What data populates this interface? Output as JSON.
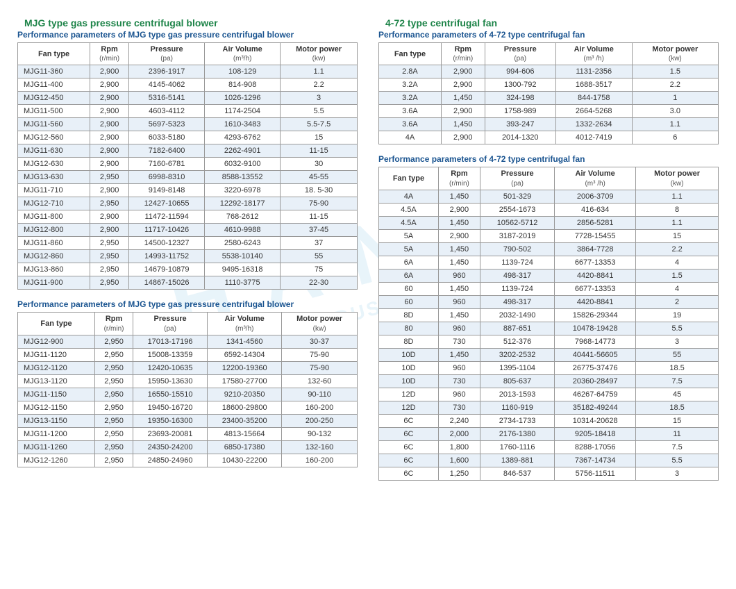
{
  "left": {
    "title": "MJG type gas pressure centrifugal blower",
    "sub": "Performance parameters of MJG type gas pressure centrifugal blower",
    "headers": [
      [
        "Fan type",
        ""
      ],
      [
        "Rpm",
        "(r/min)"
      ],
      [
        "Pressure",
        "(pa)"
      ],
      [
        "Air Volume",
        "(m³/h)"
      ],
      [
        "Motor power",
        "(kw)"
      ]
    ],
    "rows1": [
      [
        "MJG11-360",
        "2,900",
        "2396-1917",
        "108-129",
        "1.1"
      ],
      [
        "MJG11-400",
        "2,900",
        "4145-4062",
        "814-908",
        "2.2"
      ],
      [
        "MJG12-450",
        "2,900",
        "5316-5141",
        "1026-1296",
        "3"
      ],
      [
        "MJG11-500",
        "2,900",
        "4603-4112",
        "1174-2504",
        "5.5"
      ],
      [
        "MJG11-560",
        "2,900",
        "5697-5323",
        "1610-3483",
        "5.5-7.5"
      ],
      [
        "MJG12-560",
        "2,900",
        "6033-5180",
        "4293-6762",
        "15"
      ],
      [
        "MJG11-630",
        "2,900",
        "7182-6400",
        "2262-4901",
        "11-15"
      ],
      [
        "MJG12-630",
        "2,900",
        "7160-6781",
        "6032-9100",
        "30"
      ],
      [
        "MJG13-630",
        "2,950",
        "6998-8310",
        "8588-13552",
        "45-55"
      ],
      [
        "MJG11-710",
        "2,900",
        "9149-8148",
        "3220-6978",
        "18. 5-30"
      ],
      [
        "MJG12-710",
        "2,950",
        "12427-10655",
        "12292-18177",
        "75-90"
      ],
      [
        "MJG11-800",
        "2,900",
        "11472-11594",
        "768-2612",
        "11-15"
      ],
      [
        "MJG12-800",
        "2,900",
        "11717-10426",
        "4610-9988",
        "37-45"
      ],
      [
        "MJG11-860",
        "2,950",
        "14500-12327",
        "2580-6243",
        "37"
      ],
      [
        "MJG12-860",
        "2,950",
        "14993-11752",
        "5538-10140",
        "55"
      ],
      [
        "MJG13-860",
        "2,950",
        "14679-10879",
        "9495-16318",
        "75"
      ],
      [
        "MJG11-900",
        "2,950",
        "14867-15026",
        "1110-3775",
        "22-30"
      ]
    ],
    "sub2": "Performance parameters of MJG type gas pressure centrifugal blower",
    "rows2": [
      [
        "MJG12-900",
        "2,950",
        "17013-17196",
        "1341-4560",
        "30-37"
      ],
      [
        "MJG11-1120",
        "2,950",
        "15008-13359",
        "6592-14304",
        "75-90"
      ],
      [
        "MJG12-1120",
        "2,950",
        "12420-10635",
        "12200-19360",
        "75-90"
      ],
      [
        "MJG13-1120",
        "2,950",
        "15950-13630",
        "17580-27700",
        "132-60"
      ],
      [
        "MJG11-1150",
        "2,950",
        "16550-15510",
        "9210-20350",
        "90-110"
      ],
      [
        "MJG12-1150",
        "2,950",
        "19450-16720",
        "18600-29800",
        "160-200"
      ],
      [
        "MJG13-1150",
        "2,950",
        "19350-16300",
        "23400-35200",
        "200-250"
      ],
      [
        "MJG11-1200",
        "2,950",
        "23693-20081",
        "4813-15664",
        "90-132"
      ],
      [
        "MJG11-1260",
        "2,950",
        "24350-24200",
        "6850-17380",
        "132-160"
      ],
      [
        "MJG12-1260",
        "2,950",
        "24850-24960",
        "10430-22200",
        "160-200"
      ]
    ]
  },
  "right": {
    "title": "4-72 type centrifugal fan",
    "sub": "Performance parameters of 4-72 type centrifugal fan",
    "headers": [
      [
        "Fan type",
        ""
      ],
      [
        "Rpm",
        "(r/min)"
      ],
      [
        "Pressure",
        "(pa)"
      ],
      [
        "Air Volume",
        "(m³ /h)"
      ],
      [
        "Motor power",
        "(kw)"
      ]
    ],
    "rows1": [
      [
        "2.8A",
        "2,900",
        "994-606",
        "1131-2356",
        "1.5"
      ],
      [
        "3.2A",
        "2,900",
        "1300-792",
        "1688-3517",
        "2.2"
      ],
      [
        "3.2A",
        "1,450",
        "324-198",
        "844-1758",
        "1"
      ],
      [
        "3.6A",
        "2,900",
        "1758-989",
        "2664-5268",
        "3.0"
      ],
      [
        "3.6A",
        "1,450",
        "393-247",
        "1332-2634",
        "1.1"
      ],
      [
        "4A",
        "2,900",
        "2014-1320",
        "4012-7419",
        "6"
      ]
    ],
    "sub2": "Performance parameters of 4-72 type centrifugal fan",
    "rows2": [
      [
        "4A",
        "1,450",
        "501-329",
        "2006-3709",
        "1.1"
      ],
      [
        "4.5A",
        "2,900",
        "2554-1673",
        "416-634",
        "8"
      ],
      [
        "4.5A",
        "1,450",
        "10562-5712",
        "2856-5281",
        "1.1"
      ],
      [
        "5A",
        "2,900",
        "3187-2019",
        "7728-15455",
        "15"
      ],
      [
        "5A",
        "1,450",
        "790-502",
        "3864-7728",
        "2.2"
      ],
      [
        "6A",
        "1,450",
        "1139-724",
        "6677-13353",
        "4"
      ],
      [
        "6A",
        "960",
        "498-317",
        "4420-8841",
        "1.5"
      ],
      [
        "60",
        "1,450",
        "1139-724",
        "6677-13353",
        "4"
      ],
      [
        "60",
        "960",
        "498-317",
        "4420-8841",
        "2"
      ],
      [
        "8D",
        "1,450",
        "2032-1490",
        "15826-29344",
        "19"
      ],
      [
        "80",
        "960",
        "887-651",
        "10478-19428",
        "5.5"
      ],
      [
        "8D",
        "730",
        "512-376",
        "7968-14773",
        "3"
      ],
      [
        "10D",
        "1,450",
        "3202-2532",
        "40441-56605",
        "55"
      ],
      [
        "10D",
        "960",
        "1395-1104",
        "26775-37476",
        "18.5"
      ],
      [
        "10D",
        "730",
        "805-637",
        "20360-28497",
        "7.5"
      ],
      [
        "12D",
        "960",
        "2013-1593",
        "46267-64759",
        "45"
      ],
      [
        "12D",
        "730",
        "1160-919",
        "35182-49244",
        "18.5"
      ],
      [
        "6C",
        "2,240",
        "2734-1733",
        "10314-20628",
        "15"
      ],
      [
        "6C",
        "2,000",
        "2176-1380",
        "9205-18418",
        "11"
      ],
      [
        "6C",
        "1,800",
        "1760-1116",
        "8288-17056",
        "7.5"
      ],
      [
        "6C",
        "1,600",
        "1389-881",
        "7367-14734",
        "5.5"
      ],
      [
        "6C",
        "1,250",
        "846-537",
        "5756-11511",
        "3"
      ]
    ]
  }
}
